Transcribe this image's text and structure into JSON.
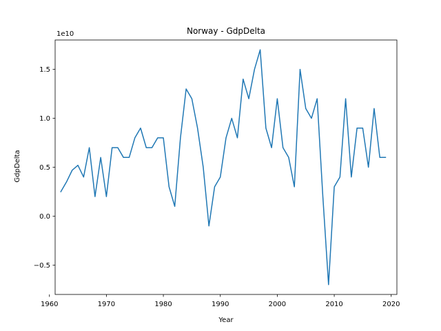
{
  "chart_data": {
    "type": "line",
    "title": "Norway - GdpDelta",
    "xlabel": "Year",
    "ylabel": "GdpDelta",
    "offset_label": "1e10",
    "xlim": [
      1961,
      2021
    ],
    "ylim": [
      -8.0,
      18.0
    ],
    "x_ticks": [
      1960,
      1970,
      1980,
      1990,
      2000,
      2010,
      2020
    ],
    "x_tick_labels": [
      "1960",
      "1970",
      "1980",
      "1990",
      "2000",
      "2010",
      "2020"
    ],
    "y_ticks": [
      -0.5,
      0.0,
      0.5,
      1.0,
      1.5
    ],
    "y_tick_labels": [
      "−0.5",
      "0.0",
      "0.5",
      "1.0",
      "1.5"
    ],
    "grid": false,
    "legend": "none",
    "series": [
      {
        "color": "#1f77b4",
        "x": [
          1962,
          1963,
          1964,
          1965,
          1966,
          1967,
          1968,
          1969,
          1970,
          1971,
          1972,
          1973,
          1974,
          1975,
          1976,
          1977,
          1978,
          1979,
          1980,
          1981,
          1982,
          1983,
          1984,
          1985,
          1986,
          1987,
          1988,
          1989,
          1990,
          1991,
          1992,
          1993,
          1994,
          1995,
          1996,
          1997,
          1998,
          1999,
          2000,
          2001,
          2002,
          2003,
          2004,
          2005,
          2006,
          2007,
          2008,
          2009,
          2010,
          2011,
          2012,
          2013,
          2014,
          2015,
          2016,
          2017,
          2018,
          2019
        ],
        "y": [
          0.25,
          0.35,
          0.47,
          0.52,
          0.4,
          0.7,
          0.2,
          0.6,
          0.2,
          0.7,
          0.7,
          0.6,
          0.6,
          0.8,
          0.9,
          0.7,
          0.7,
          0.8,
          0.8,
          0.3,
          0.1,
          0.8,
          1.3,
          1.2,
          0.9,
          0.5,
          -0.1,
          0.3,
          0.4,
          0.8,
          1.0,
          0.8,
          1.4,
          1.2,
          1.5,
          1.7,
          0.9,
          0.7,
          1.2,
          0.7,
          0.6,
          0.3,
          1.5,
          1.1,
          1.0,
          1.2,
          0.2,
          -0.7,
          0.3,
          0.4,
          1.2,
          0.4,
          0.9,
          0.9,
          0.5,
          1.1,
          0.6,
          0.6
        ]
      }
    ]
  }
}
